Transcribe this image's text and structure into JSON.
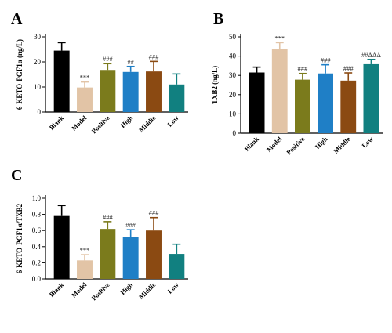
{
  "colors": {
    "Blank": "#000000",
    "Model": "#e2c4a6",
    "Positive": "#7b7b1c",
    "High": "#1f7fc6",
    "Middle": "#8b4a12",
    "Low": "#118080"
  },
  "chart_data": [
    {
      "id": "A",
      "panel_label": "A",
      "type": "bar",
      "title": "",
      "ylabel": "6-KETO-PGF1α (ng/L)",
      "xlabel": "",
      "ylim": [
        0,
        30
      ],
      "yticks": [
        "0",
        "10",
        "20",
        "30"
      ],
      "ytick_values": [
        0,
        10,
        20,
        30
      ],
      "categories": [
        "Blank",
        "Model",
        "Positive",
        "High",
        "Middle",
        "Low"
      ],
      "values": [
        24.5,
        9.8,
        16.8,
        16.0,
        16.2,
        11.0
      ],
      "errors": [
        3.2,
        2.2,
        2.5,
        2.2,
        4.0,
        4.2
      ],
      "annotations": [
        "",
        "***",
        "###",
        "##",
        "###",
        ""
      ]
    },
    {
      "id": "B",
      "panel_label": "B",
      "type": "bar",
      "title": "",
      "ylabel": "TXB2 (ng/L)",
      "xlabel": "",
      "ylim": [
        0,
        50
      ],
      "yticks": [
        "0",
        "10",
        "20",
        "30",
        "40",
        "50"
      ],
      "ytick_values": [
        0,
        10,
        20,
        30,
        40,
        50
      ],
      "categories": [
        "Blank",
        "Model",
        "Positive",
        "High",
        "Middle",
        "Low"
      ],
      "values": [
        31.5,
        43.5,
        27.8,
        31.0,
        27.3,
        35.8
      ],
      "errors": [
        2.8,
        3.5,
        3.2,
        4.5,
        4.0,
        2.5
      ],
      "annotations": [
        "",
        "***",
        "###",
        "###",
        "###",
        "##ΔΔΔ"
      ]
    },
    {
      "id": "C",
      "panel_label": "C",
      "type": "bar",
      "title": "",
      "ylabel": "6-KETO-PGF1α/TXB2",
      "xlabel": "",
      "ylim": [
        0,
        1.0
      ],
      "yticks": [
        "0.0",
        "0.2",
        "0.4",
        "0.6",
        "0.8",
        "1.0"
      ],
      "ytick_values": [
        0,
        0.2,
        0.4,
        0.6,
        0.8,
        1.0
      ],
      "categories": [
        "Blank",
        "Model",
        "Positive",
        "High",
        "Middle",
        "Low"
      ],
      "values": [
        0.78,
        0.23,
        0.62,
        0.52,
        0.6,
        0.31
      ],
      "errors": [
        0.13,
        0.07,
        0.09,
        0.09,
        0.16,
        0.12
      ],
      "annotations": [
        "",
        "***",
        "###",
        "###",
        "###",
        ""
      ]
    }
  ]
}
